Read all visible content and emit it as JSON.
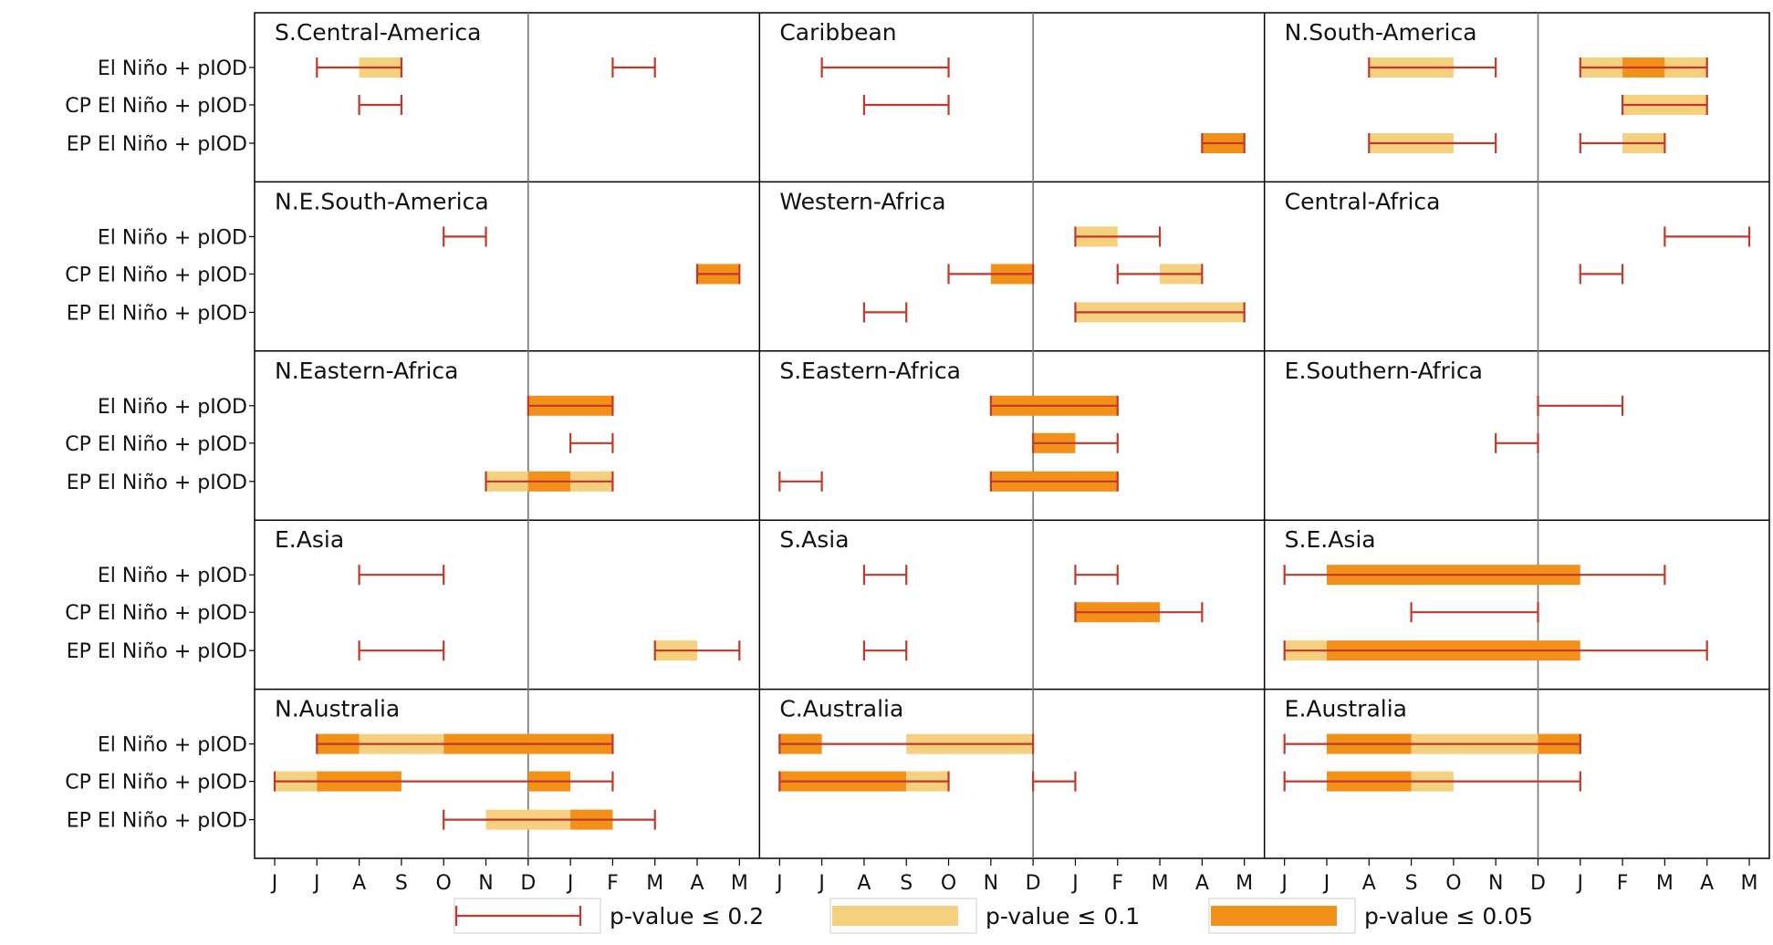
{
  "chart_data": {
    "type": "range-bar",
    "months": [
      "J",
      "J",
      "A",
      "S",
      "O",
      "N",
      "D",
      "J",
      "F",
      "M",
      "A",
      "M",
      "J",
      "J",
      "A",
      "S",
      "O",
      "N",
      "D",
      "J",
      "F",
      "M",
      "A",
      "M",
      "J",
      "J",
      "A",
      "S",
      "O",
      "N",
      "D",
      "J",
      "F",
      "M",
      "A",
      "M"
    ],
    "rows": [
      "El Niño + pIOD",
      "CP El Niño + pIOD",
      "EP El Niño + pIOD"
    ],
    "colors": {
      "range": "#c0392b",
      "p01": "#f5d07e",
      "p005": "#f39019",
      "grid": "#777777",
      "frame": "#000000"
    },
    "legend": [
      {
        "key": "range",
        "label": "p-value ≤ 0.2"
      },
      {
        "key": "p01",
        "label": "p-value ≤ 0.1"
      },
      {
        "key": "p005",
        "label": "p-value ≤ 0.05"
      }
    ],
    "panels": [
      {
        "title": "S.Central-America",
        "row": 0,
        "col": 0,
        "series": [
          [
            [
              1,
              3,
              [
                [
                  2,
                  3,
                  "p01"
                ]
              ]
            ],
            [
              8,
              9,
              []
            ]
          ],
          [
            [
              2,
              3,
              []
            ]
          ],
          []
        ]
      },
      {
        "title": "Caribbean",
        "row": 0,
        "col": 1,
        "series": [
          [
            [
              1,
              4,
              []
            ]
          ],
          [
            [
              2,
              4,
              []
            ]
          ],
          [
            [
              10,
              11,
              [
                [
                  10,
                  11,
                  "p005"
                ]
              ]
            ]
          ]
        ]
      },
      {
        "title": "N.South-America",
        "row": 0,
        "col": 2,
        "series": [
          [
            [
              2,
              5,
              [
                [
                  2,
                  4,
                  "p01"
                ]
              ]
            ],
            [
              7,
              10,
              [
                [
                  7,
                  8,
                  "p01"
                ],
                [
                  8,
                  9,
                  "p005"
                ],
                [
                  9,
                  10,
                  "p01"
                ]
              ]
            ]
          ],
          [
            [
              8,
              10,
              [
                [
                  8,
                  10,
                  "p01"
                ]
              ]
            ]
          ],
          [
            [
              2,
              5,
              [
                [
                  2,
                  4,
                  "p01"
                ]
              ]
            ],
            [
              7,
              9,
              [
                [
                  8,
                  9,
                  "p01"
                ]
              ]
            ]
          ]
        ]
      },
      {
        "title": "N.E.South-America",
        "row": 1,
        "col": 0,
        "series": [
          [
            [
              4,
              5,
              []
            ]
          ],
          [
            [
              10,
              11,
              [
                [
                  10,
                  11,
                  "p005"
                ]
              ]
            ]
          ],
          []
        ]
      },
      {
        "title": "Western-Africa",
        "row": 1,
        "col": 1,
        "series": [
          [
            [
              7,
              9,
              [
                [
                  7,
                  8,
                  "p01"
                ]
              ]
            ]
          ],
          [
            [
              4,
              6,
              [
                [
                  5,
                  6,
                  "p005"
                ]
              ]
            ],
            [
              8,
              10,
              [
                [
                  9,
                  10,
                  "p01"
                ]
              ]
            ]
          ],
          [
            [
              2,
              3,
              []
            ],
            [
              7,
              11,
              [
                [
                  7,
                  11,
                  "p01"
                ]
              ]
            ]
          ]
        ]
      },
      {
        "title": "Central-Africa",
        "row": 1,
        "col": 2,
        "series": [
          [
            [
              9,
              11,
              []
            ]
          ],
          [
            [
              7,
              8,
              []
            ]
          ],
          []
        ]
      },
      {
        "title": "N.Eastern-Africa",
        "row": 2,
        "col": 0,
        "series": [
          [
            [
              6,
              8,
              [
                [
                  6,
                  8,
                  "p005"
                ]
              ]
            ]
          ],
          [
            [
              7,
              8,
              []
            ]
          ],
          [
            [
              5,
              8,
              [
                [
                  5,
                  6,
                  "p01"
                ],
                [
                  6,
                  7,
                  "p005"
                ],
                [
                  7,
                  8,
                  "p01"
                ]
              ]
            ]
          ]
        ]
      },
      {
        "title": "S.Eastern-Africa",
        "row": 2,
        "col": 1,
        "series": [
          [
            [
              5,
              8,
              [
                [
                  5,
                  8,
                  "p005"
                ]
              ]
            ]
          ],
          [
            [
              6,
              8,
              [
                [
                  6,
                  7,
                  "p005"
                ]
              ]
            ]
          ],
          [
            [
              0,
              1,
              []
            ],
            [
              5,
              8,
              [
                [
                  5,
                  8,
                  "p005"
                ]
              ]
            ]
          ]
        ]
      },
      {
        "title": "E.Southern-Africa",
        "row": 2,
        "col": 2,
        "series": [
          [
            [
              6,
              8,
              []
            ]
          ],
          [
            [
              5,
              6,
              []
            ]
          ],
          []
        ]
      },
      {
        "title": "E.Asia",
        "row": 3,
        "col": 0,
        "series": [
          [
            [
              2,
              4,
              []
            ]
          ],
          [],
          [
            [
              2,
              4,
              []
            ],
            [
              9,
              11,
              [
                [
                  9,
                  10,
                  "p01"
                ]
              ]
            ]
          ]
        ]
      },
      {
        "title": "S.Asia",
        "row": 3,
        "col": 1,
        "series": [
          [
            [
              2,
              3,
              []
            ],
            [
              7,
              8,
              []
            ]
          ],
          [
            [
              7,
              10,
              [
                [
                  7,
                  9,
                  "p005"
                ]
              ]
            ]
          ],
          [
            [
              2,
              3,
              []
            ]
          ]
        ]
      },
      {
        "title": "S.E.Asia",
        "row": 3,
        "col": 2,
        "series": [
          [
            [
              0,
              9,
              [
                [
                  1,
                  7,
                  "p005"
                ]
              ]
            ]
          ],
          [
            [
              3,
              6,
              []
            ]
          ],
          [
            [
              0,
              10,
              [
                [
                  0,
                  1,
                  "p01"
                ],
                [
                  1,
                  7,
                  "p005"
                ]
              ]
            ]
          ]
        ]
      },
      {
        "title": "N.Australia",
        "row": 4,
        "col": 0,
        "series": [
          [
            [
              1,
              8,
              [
                [
                  1,
                  2,
                  "p005"
                ],
                [
                  2,
                  4,
                  "p01"
                ],
                [
                  4,
                  8,
                  "p005"
                ]
              ]
            ]
          ],
          [
            [
              0,
              8,
              [
                [
                  0,
                  1,
                  "p01"
                ],
                [
                  1,
                  3,
                  "p005"
                ],
                [
                  6,
                  7,
                  "p005"
                ]
              ]
            ]
          ],
          [
            [
              4,
              9,
              [
                [
                  5,
                  7,
                  "p01"
                ],
                [
                  7,
                  8,
                  "p005"
                ]
              ]
            ]
          ]
        ]
      },
      {
        "title": "C.Australia",
        "row": 4,
        "col": 1,
        "series": [
          [
            [
              0,
              6,
              [
                [
                  0,
                  1,
                  "p005"
                ],
                [
                  3,
                  6,
                  "p01"
                ]
              ]
            ]
          ],
          [
            [
              0,
              4,
              [
                [
                  0,
                  3,
                  "p005"
                ],
                [
                  3,
                  4,
                  "p01"
                ]
              ]
            ],
            [
              6,
              7,
              []
            ]
          ],
          []
        ]
      },
      {
        "title": "E.Australia",
        "row": 4,
        "col": 2,
        "series": [
          [
            [
              0,
              7,
              [
                [
                  1,
                  3,
                  "p005"
                ],
                [
                  3,
                  6,
                  "p01"
                ],
                [
                  6,
                  7,
                  "p005"
                ]
              ]
            ]
          ],
          [
            [
              0,
              7,
              [
                [
                  1,
                  3,
                  "p005"
                ],
                [
                  3,
                  4,
                  "p01"
                ]
              ]
            ]
          ],
          []
        ]
      }
    ]
  }
}
